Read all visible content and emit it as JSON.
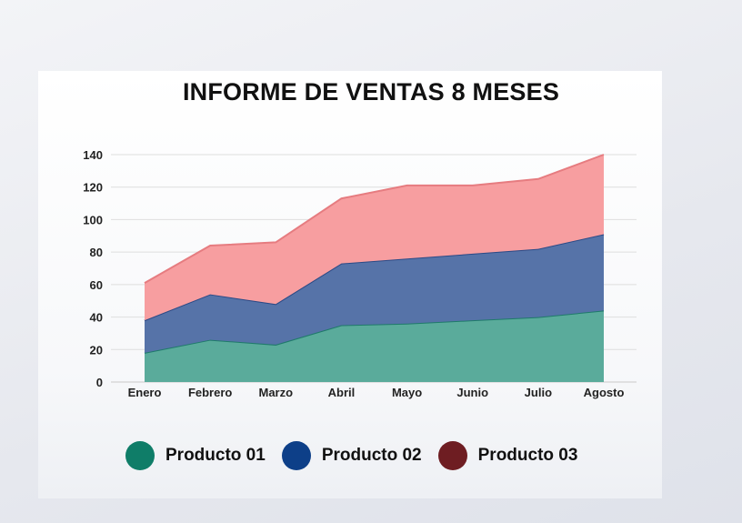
{
  "chart_data": {
    "type": "area",
    "stacked": true,
    "title": "INFORME DE VENTAS 8 MESES",
    "categories": [
      "Enero",
      "Febrero",
      "Marzo",
      "Abril",
      "Mayo",
      "Junio",
      "Julio",
      "Agosto"
    ],
    "series": [
      {
        "name": "Producto 01",
        "values": [
          18,
          26,
          23,
          35,
          36,
          38,
          40,
          44
        ],
        "color": "#5aab9b",
        "line_color": "#1f7a6a",
        "legend_color": "#0f7d68"
      },
      {
        "name": "Producto 02",
        "values": [
          20,
          28,
          25,
          38,
          40,
          41,
          42,
          47
        ],
        "color": "#5673a8",
        "line_color": "#2b4a86",
        "legend_color": "#0d3f88"
      },
      {
        "name": "Producto 03",
        "values": [
          23,
          30,
          38,
          40,
          45,
          42,
          43,
          49
        ],
        "color": "#f79ea0",
        "line_color": "#e67c80",
        "legend_color": "#6e1d22"
      }
    ],
    "ylim": [
      0,
      140
    ],
    "yticks": [
      0,
      20,
      40,
      60,
      80,
      100,
      120,
      140
    ],
    "grid": true,
    "legend_position": "bottom"
  }
}
